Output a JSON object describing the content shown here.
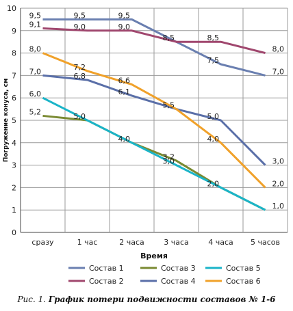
{
  "chart_data": {
    "type": "line",
    "xlabel": "Время",
    "ylabel": "Погружение конуса, см",
    "categories": [
      "сразу",
      "1 час",
      "2 часа",
      "3 часа",
      "4 часа",
      "5 часов"
    ],
    "ylim": [
      0,
      10
    ],
    "yticks": [
      0,
      1,
      2,
      3,
      4,
      5,
      6,
      7,
      8,
      9,
      10
    ],
    "grid": true,
    "legend_position": "bottom",
    "series": [
      {
        "name": "Состав 1",
        "color": "#6a7fb0",
        "values": [
          9.5,
          9.5,
          9.5,
          8.5,
          7.5,
          7.0
        ],
        "labels": [
          "9,5",
          "9,5",
          "9,5",
          "",
          "7,5",
          "7,0"
        ]
      },
      {
        "name": "Состав 2",
        "color": "#a0476e",
        "values": [
          9.1,
          9.0,
          9.0,
          8.5,
          8.5,
          8.0
        ],
        "labels": [
          "9,1",
          "9,0",
          "9,0",
          "8,5",
          "8,5",
          "8,0"
        ]
      },
      {
        "name": "Состав 3",
        "color": "#7a8a32",
        "values": [
          5.2,
          5.0,
          4.0,
          3.2,
          2.0,
          1.0
        ],
        "labels": [
          "5,2",
          "",
          "",
          "3,2",
          "",
          ""
        ]
      },
      {
        "name": "Состав 4",
        "color": "#5a6fa8",
        "values": [
          7.0,
          6.8,
          6.1,
          5.5,
          5.0,
          3.0
        ],
        "labels": [
          "7,0",
          "6,8",
          "6,1",
          "5,5",
          "5,0",
          "3,0"
        ]
      },
      {
        "name": "Состав 5",
        "color": "#1ab4c8",
        "values": [
          6.0,
          5.0,
          4.0,
          3.0,
          2.0,
          1.0
        ],
        "labels": [
          "6,0",
          "5,0",
          "4,0",
          "3,0",
          "2,0",
          "1,0"
        ]
      },
      {
        "name": "Состав 6",
        "color": "#f0a12a",
        "values": [
          8.0,
          7.2,
          6.6,
          5.5,
          4.0,
          2.0
        ],
        "labels": [
          "8,0",
          "7,2",
          "6,6",
          "",
          "4,0",
          "2,0"
        ]
      }
    ]
  },
  "caption": {
    "prefix": "Рис. 1. ",
    "title": "График потери подвижности составов № 1-6"
  }
}
